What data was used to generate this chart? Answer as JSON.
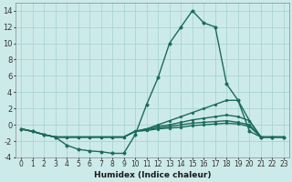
{
  "xlabel": "Humidex (Indice chaleur)",
  "bg_color": "#cdeaea",
  "grid_color": "#aad4d4",
  "line_color": "#1a6b5a",
  "xlim": [
    -0.5,
    23.5
  ],
  "ylim": [
    -4,
    15
  ],
  "xticks": [
    0,
    1,
    2,
    3,
    4,
    5,
    6,
    7,
    8,
    9,
    10,
    11,
    12,
    13,
    14,
    15,
    16,
    17,
    18,
    19,
    20,
    21,
    22,
    23
  ],
  "yticks": [
    -4,
    -2,
    0,
    2,
    4,
    6,
    8,
    10,
    12,
    14
  ],
  "series": [
    {
      "x": [
        0,
        1,
        2,
        3,
        4,
        5,
        6,
        7,
        8,
        9,
        10,
        11,
        12,
        13,
        14,
        15,
        16,
        17,
        18,
        19,
        20,
        21,
        22,
        23
      ],
      "y": [
        -0.5,
        -0.8,
        -1.2,
        -1.5,
        -2.5,
        -3.0,
        -3.2,
        -3.3,
        -3.5,
        -3.5,
        -1.2,
        2.5,
        5.8,
        10.0,
        12.0,
        14.0,
        12.5,
        12.0,
        5.0,
        3.0,
        -0.8,
        -1.5,
        -1.5,
        -1.5
      ],
      "markersize": 2.5
    },
    {
      "x": [
        0,
        1,
        2,
        3,
        4,
        5,
        6,
        7,
        8,
        9,
        10,
        11,
        12,
        13,
        14,
        15,
        16,
        17,
        18,
        19,
        20,
        21,
        22,
        23
      ],
      "y": [
        -0.5,
        -0.8,
        -1.2,
        -1.5,
        -1.5,
        -1.5,
        -1.5,
        -1.5,
        -1.5,
        -1.5,
        -0.8,
        -0.5,
        0.0,
        0.5,
        1.0,
        1.5,
        2.0,
        2.5,
        3.0,
        3.0,
        0.5,
        -1.5,
        -1.5,
        -1.5
      ],
      "markersize": 2.0
    },
    {
      "x": [
        0,
        1,
        2,
        3,
        4,
        5,
        6,
        7,
        8,
        9,
        10,
        11,
        12,
        13,
        14,
        15,
        16,
        17,
        18,
        19,
        20,
        21,
        22,
        23
      ],
      "y": [
        -0.5,
        -0.8,
        -1.2,
        -1.5,
        -1.5,
        -1.5,
        -1.5,
        -1.5,
        -1.5,
        -1.5,
        -0.8,
        -0.5,
        -0.2,
        0.0,
        0.3,
        0.6,
        0.8,
        1.0,
        1.2,
        1.0,
        0.5,
        -1.5,
        -1.5,
        -1.5
      ],
      "markersize": 2.0
    },
    {
      "x": [
        0,
        1,
        2,
        3,
        4,
        5,
        6,
        7,
        8,
        9,
        10,
        11,
        12,
        13,
        14,
        15,
        16,
        17,
        18,
        19,
        20,
        21,
        22,
        23
      ],
      "y": [
        -0.5,
        -0.8,
        -1.2,
        -1.5,
        -1.5,
        -1.5,
        -1.5,
        -1.5,
        -1.5,
        -1.5,
        -0.8,
        -0.6,
        -0.4,
        -0.2,
        0.0,
        0.2,
        0.3,
        0.4,
        0.5,
        0.3,
        0.0,
        -1.5,
        -1.5,
        -1.5
      ],
      "markersize": 2.0
    },
    {
      "x": [
        0,
        1,
        2,
        3,
        4,
        5,
        6,
        7,
        8,
        9,
        10,
        11,
        12,
        13,
        14,
        15,
        16,
        17,
        18,
        19,
        20,
        21,
        22,
        23
      ],
      "y": [
        -0.5,
        -0.8,
        -1.2,
        -1.5,
        -1.5,
        -1.5,
        -1.5,
        -1.5,
        -1.5,
        -1.5,
        -0.8,
        -0.7,
        -0.5,
        -0.4,
        -0.3,
        -0.1,
        0.0,
        0.1,
        0.2,
        0.1,
        -0.2,
        -1.5,
        -1.5,
        -1.5
      ],
      "markersize": 2.0
    }
  ]
}
